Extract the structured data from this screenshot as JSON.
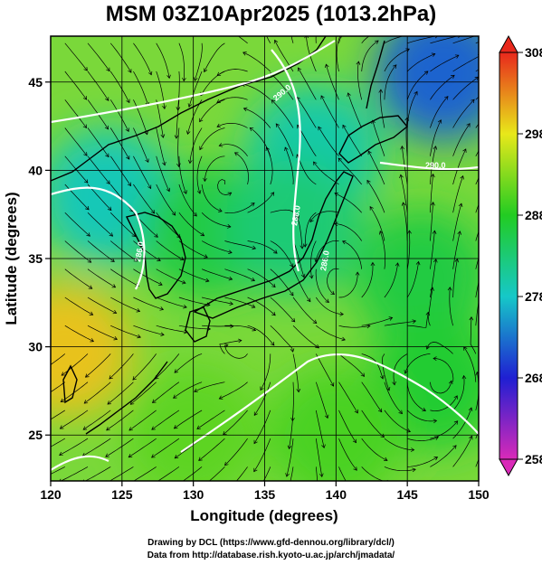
{
  "chart_data": {
    "type": "heatmap",
    "title": "MSM 03Z10Apr2025 (1013.2hPa)",
    "xlabel": "Longitude (degrees)",
    "ylabel": "Latitude  (degrees)",
    "xlim": [
      120,
      150
    ],
    "ylim": [
      22.4,
      47.6
    ],
    "x_ticks": [
      120,
      125,
      130,
      135,
      140,
      145,
      150
    ],
    "y_ticks": [
      25,
      30,
      35,
      40,
      45
    ],
    "grid": true,
    "colorbar": {
      "range": [
        258,
        308
      ],
      "ticks": [
        258,
        268,
        278,
        288,
        298,
        308
      ],
      "colors": [
        "#d92ab8",
        "#1f1fd2",
        "#16c8c8",
        "#22cc22",
        "#e8e81a",
        "#e8281c"
      ]
    },
    "field_centers": [
      {
        "lon": 147.5,
        "lat": 45.5,
        "value": 272
      },
      {
        "lon": 138.5,
        "lat": 41.0,
        "value": 280
      },
      {
        "lon": 124.0,
        "lat": 38.5,
        "value": 279
      },
      {
        "lon": 131.0,
        "lat": 36.5,
        "value": 286
      },
      {
        "lon": 137.0,
        "lat": 36.8,
        "value": 283
      },
      {
        "lon": 146.0,
        "lat": 34.0,
        "value": 286
      },
      {
        "lon": 147.0,
        "lat": 28.0,
        "value": 287
      },
      {
        "lon": 121.0,
        "lat": 29.8,
        "value": 300
      },
      {
        "lon": 130.0,
        "lat": 25.0,
        "value": 291
      },
      {
        "lon": 140.0,
        "lat": 25.0,
        "value": 290
      }
    ],
    "contour_labels": [
      "290.0",
      "290.0",
      "286.0",
      "288.0",
      "286.0"
    ]
  },
  "credits": {
    "line1": "Drawing by DCL (https://www.gfd-dennou.org/library/dcl/)",
    "line2": "Data from http://database.rish.kyoto-u.ac.jp/arch/jmadata/"
  }
}
